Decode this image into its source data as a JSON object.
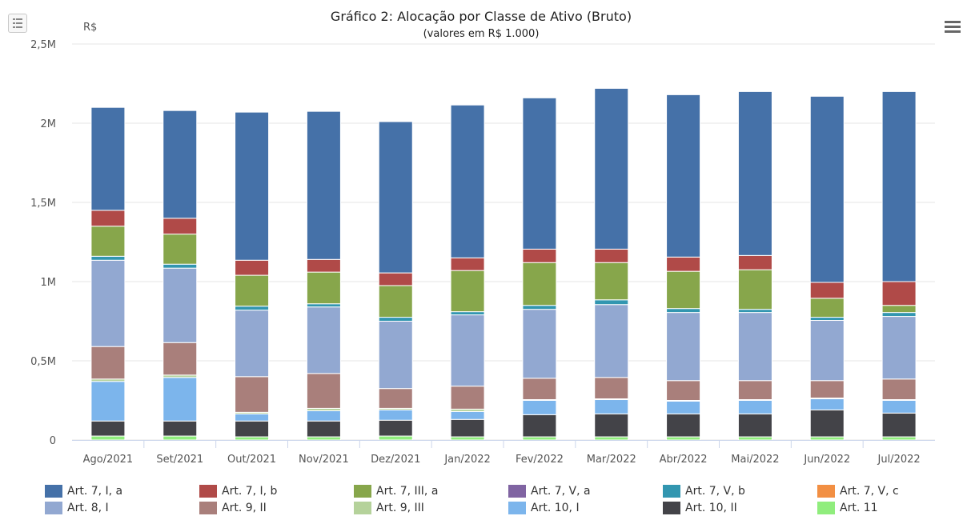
{
  "chart_data": {
    "type": "bar",
    "stacked": true,
    "title": "Gráfico 2: Alocação por Classe de Ativo (Bruto)",
    "subtitle": "(valores em R$ 1.000)",
    "ylabel": "R$",
    "ylim": [
      0,
      2500000
    ],
    "yticks": [
      0,
      500000,
      1000000,
      1500000,
      2000000,
      2500000
    ],
    "ytick_labels": [
      "0",
      "0,5M",
      "1M",
      "1,5M",
      "2M",
      "2,5M"
    ],
    "grid": true,
    "legend_position": "bottom",
    "categories": [
      "Ago/2021",
      "Set/2021",
      "Out/2021",
      "Nov/2021",
      "Dez/2021",
      "Jan/2022",
      "Fev/2022",
      "Mar/2022",
      "Abr/2022",
      "Mai/2022",
      "Jun/2022",
      "Jul/2022"
    ],
    "series": [
      {
        "name": "Art. 11",
        "color": "#90ed7d",
        "values": [
          25000,
          25000,
          20000,
          20000,
          25000,
          20000,
          20000,
          20000,
          20000,
          20000,
          20000,
          20000
        ]
      },
      {
        "name": "Art. 10, II",
        "color": "#434348",
        "values": [
          95000,
          95000,
          100000,
          100000,
          100000,
          110000,
          140000,
          145000,
          145000,
          145000,
          170000,
          150000
        ]
      },
      {
        "name": "Art. 10, I",
        "color": "#7cb5ec",
        "values": [
          250000,
          275000,
          45000,
          65000,
          65000,
          50000,
          90000,
          90000,
          80000,
          85000,
          70000,
          80000
        ]
      },
      {
        "name": "Art. 9, III",
        "color": "#b5d29b",
        "values": [
          15000,
          15000,
          10000,
          15000,
          10000,
          15000,
          5000,
          5000,
          5000,
          5000,
          5000,
          5000
        ]
      },
      {
        "name": "Art. 9, II",
        "color": "#a97f7b",
        "values": [
          205000,
          205000,
          225000,
          220000,
          125000,
          145000,
          135000,
          135000,
          125000,
          120000,
          110000,
          130000
        ]
      },
      {
        "name": "Art. 8, I",
        "color": "#92a8d1",
        "values": [
          545000,
          470000,
          420000,
          420000,
          425000,
          450000,
          435000,
          460000,
          430000,
          430000,
          380000,
          395000
        ]
      },
      {
        "name": "Art. 7, V, c",
        "color": "#f28f43",
        "values": [
          0,
          0,
          0,
          0,
          0,
          0,
          0,
          0,
          0,
          0,
          0,
          0
        ]
      },
      {
        "name": "Art. 7, V, b",
        "color": "#3296b0",
        "values": [
          25000,
          25000,
          25000,
          20000,
          25000,
          20000,
          25000,
          30000,
          25000,
          20000,
          20000,
          25000
        ]
      },
      {
        "name": "Art. 7, V, a",
        "color": "#8064a2",
        "values": [
          0,
          0,
          0,
          0,
          0,
          0,
          0,
          0,
          0,
          0,
          0,
          0
        ]
      },
      {
        "name": "Art. 7, III, a",
        "color": "#87a64b",
        "values": [
          190000,
          190000,
          195000,
          200000,
          200000,
          260000,
          270000,
          235000,
          235000,
          250000,
          120000,
          45000
        ]
      },
      {
        "name": "Art. 7, I, b",
        "color": "#b04a48",
        "values": [
          100000,
          100000,
          95000,
          80000,
          80000,
          80000,
          85000,
          85000,
          90000,
          90000,
          100000,
          150000
        ]
      },
      {
        "name": "Art. 7, I, a",
        "color": "#4571a8",
        "values": [
          650000,
          680000,
          935000,
          935000,
          955000,
          965000,
          955000,
          1015000,
          1025000,
          1035000,
          1175000,
          1200000
        ]
      }
    ],
    "legend": [
      {
        "name": "Art. 7, I, a",
        "color": "#4571a8"
      },
      {
        "name": "Art. 7, I, b",
        "color": "#b04a48"
      },
      {
        "name": "Art. 7, III, a",
        "color": "#87a64b"
      },
      {
        "name": "Art. 7, V, a",
        "color": "#8064a2"
      },
      {
        "name": "Art. 7, V, b",
        "color": "#3296b0"
      },
      {
        "name": "Art. 7, V, c",
        "color": "#f28f43"
      },
      {
        "name": "Art. 8, I",
        "color": "#92a8d1"
      },
      {
        "name": "Art. 9, II",
        "color": "#a97f7b"
      },
      {
        "name": "Art. 9, III",
        "color": "#b5d29b"
      },
      {
        "name": "Art. 10, I",
        "color": "#7cb5ec"
      },
      {
        "name": "Art. 10, II",
        "color": "#434348"
      },
      {
        "name": "Art. 11",
        "color": "#90ed7d"
      }
    ]
  },
  "icons": {
    "export_menu": "hamburger-icon",
    "chart_toggle": "list-icon"
  }
}
